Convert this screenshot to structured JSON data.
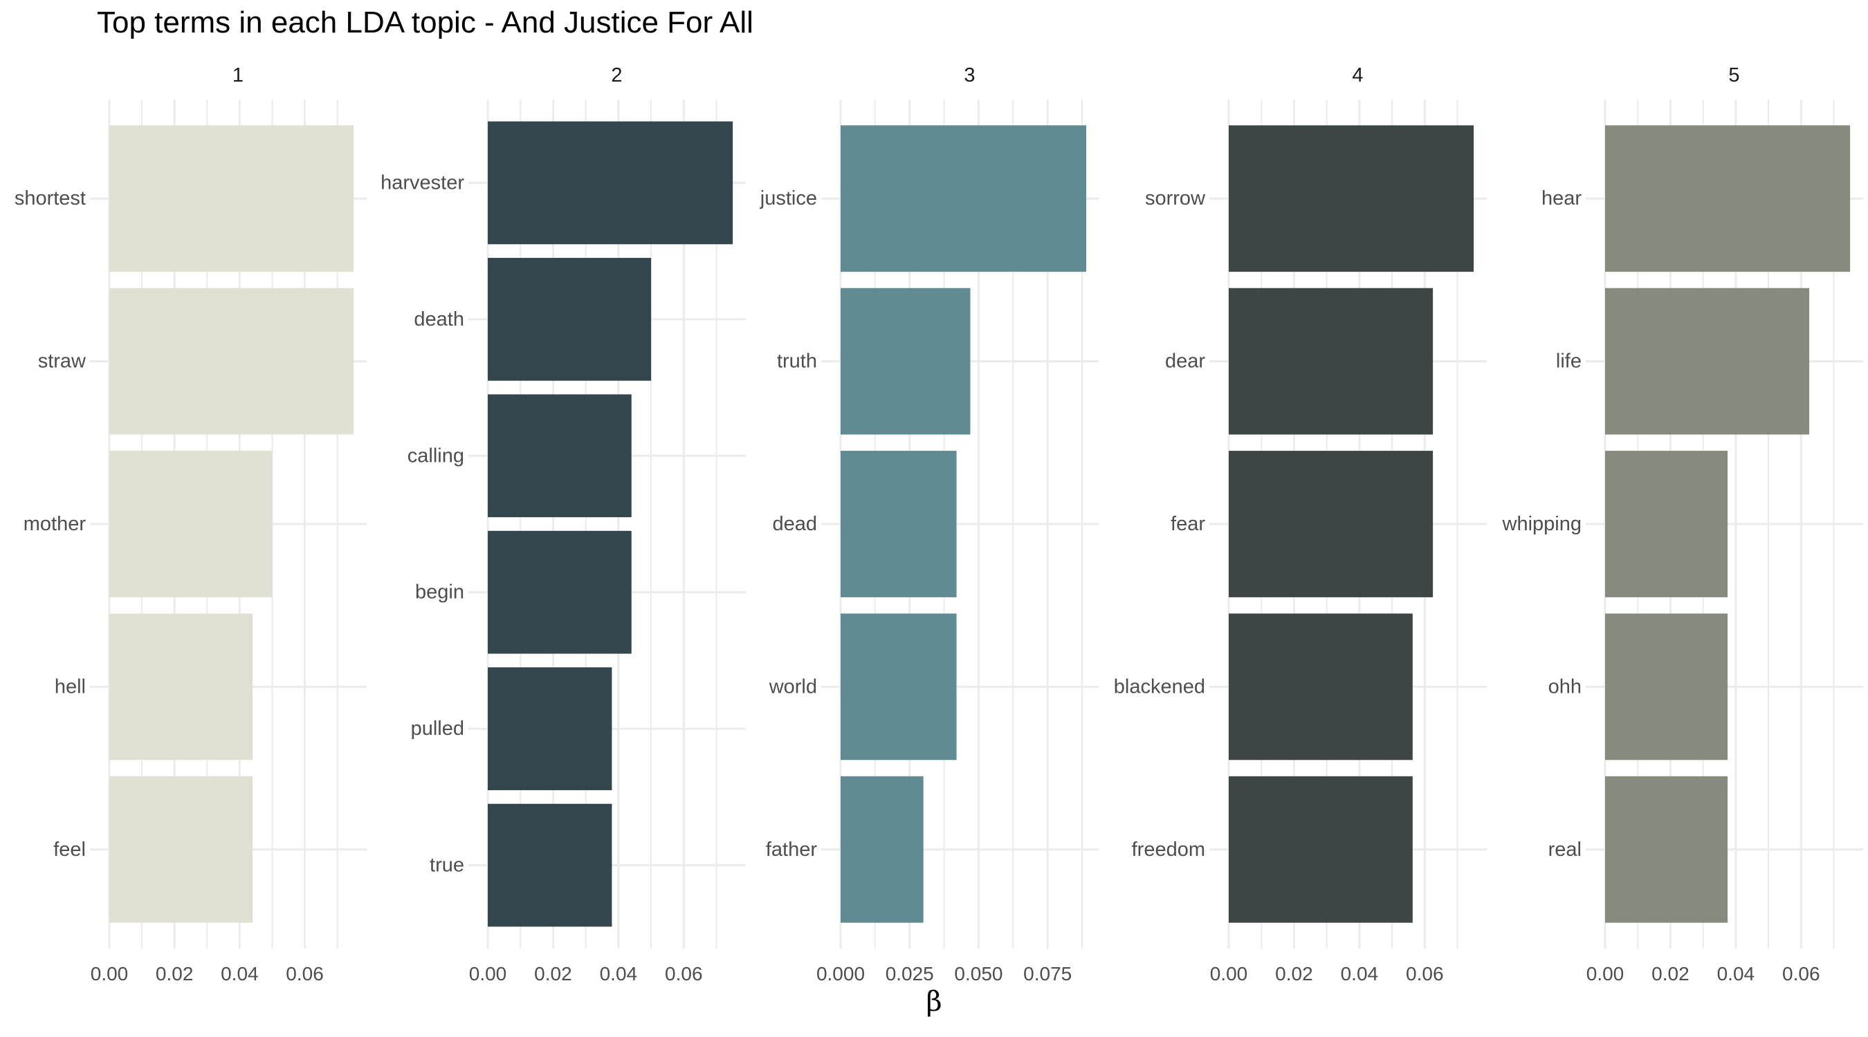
{
  "chart_data": {
    "type": "bar",
    "orientation": "horizontal",
    "title": "Top terms in each LDA topic - And Justice For All",
    "xlabel": "β",
    "ylabel": "",
    "grid": true,
    "legend": "none",
    "panels": [
      {
        "name": "1",
        "color": "#E1E1D3",
        "categories": [
          "shortest",
          "straw",
          "mother",
          "hell",
          "feel"
        ],
        "values": [
          0.075,
          0.075,
          0.05,
          0.044,
          0.044
        ],
        "xlim": [
          0,
          0.079
        ],
        "ticks": [
          0,
          0.02,
          0.04,
          0.06
        ],
        "tick_labels": [
          "0.00",
          "0.02",
          "0.04",
          "0.06"
        ]
      },
      {
        "name": "2",
        "color": "#34464D",
        "categories": [
          "harvester",
          "death",
          "calling",
          "begin",
          "pulled",
          "true"
        ],
        "values": [
          0.075,
          0.05,
          0.044,
          0.044,
          0.038,
          0.038
        ],
        "xlim": [
          0,
          0.079
        ],
        "ticks": [
          0,
          0.02,
          0.04,
          0.06
        ],
        "tick_labels": [
          "0.00",
          "0.02",
          "0.04",
          "0.06"
        ]
      },
      {
        "name": "3",
        "color": "#618B92",
        "categories": [
          "justice",
          "truth",
          "dead",
          "world",
          "father"
        ],
        "values": [
          0.089,
          0.047,
          0.042,
          0.042,
          0.03
        ],
        "xlim": [
          0,
          0.0935
        ],
        "ticks": [
          0,
          0.025,
          0.05,
          0.075
        ],
        "tick_labels": [
          "0.000",
          "0.025",
          "0.050",
          "0.075"
        ]
      },
      {
        "name": "4",
        "color": "#3D4645",
        "categories": [
          "sorrow",
          "dear",
          "fear",
          "blackened",
          "freedom"
        ],
        "values": [
          0.075,
          0.0625,
          0.0625,
          0.0563,
          0.0563
        ],
        "xlim": [
          0,
          0.079
        ],
        "ticks": [
          0,
          0.02,
          0.04,
          0.06
        ],
        "tick_labels": [
          "0.00",
          "0.02",
          "0.04",
          "0.06"
        ]
      },
      {
        "name": "5",
        "color": "#868B7D",
        "categories": [
          "hear",
          "life",
          "whipping",
          "ohh",
          "real"
        ],
        "values": [
          0.075,
          0.0625,
          0.0375,
          0.0375,
          0.0375
        ],
        "xlim": [
          0,
          0.079
        ],
        "ticks": [
          0,
          0.02,
          0.04,
          0.06
        ],
        "tick_labels": [
          "0.00",
          "0.02",
          "0.04",
          "0.06"
        ]
      }
    ]
  }
}
